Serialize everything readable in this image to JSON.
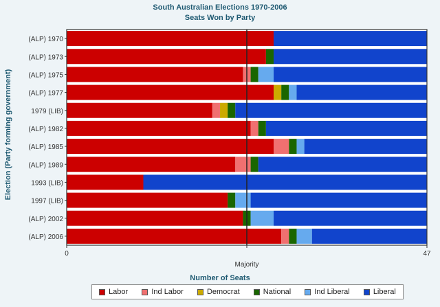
{
  "chart_data": {
    "type": "bar",
    "orientation": "horizontal",
    "stacked": true,
    "title": "South Australian Elections 1970-2006",
    "subtitle": "Seats Won by Party",
    "xlabel": "Number of Seats",
    "ylabel": "Election (Party forming government)",
    "xlim": [
      0,
      47
    ],
    "x_ticks": [
      "0",
      "47"
    ],
    "reference_line": {
      "value": 23.5,
      "label": "Majority"
    },
    "categories": [
      "(ALP) 1970",
      "(ALP) 1973",
      "(ALP) 1975",
      "(ALP) 1977",
      "1979 (LIB)",
      "(ALP) 1982",
      "(ALP) 1985",
      "(ALP) 1989",
      "1993 (LIB)",
      "1997 (LIB)",
      "(ALP) 2002",
      "(ALP) 2006"
    ],
    "series": [
      {
        "name": "Labor",
        "color": "#cc0000",
        "values": [
          27,
          26,
          23,
          27,
          19,
          24,
          27,
          22,
          10,
          21,
          23,
          28
        ]
      },
      {
        "name": "Ind Labor",
        "color": "#f07070",
        "values": [
          0,
          0,
          1,
          0,
          1,
          1,
          2,
          2,
          0,
          0,
          0,
          1
        ]
      },
      {
        "name": "Democrat",
        "color": "#ccaa00",
        "values": [
          0,
          0,
          0,
          1,
          1,
          0,
          0,
          0,
          0,
          0,
          0,
          0
        ]
      },
      {
        "name": "National",
        "color": "#1a6600",
        "values": [
          0,
          1,
          1,
          1,
          1,
          1,
          1,
          1,
          0,
          1,
          1,
          1
        ]
      },
      {
        "name": "Ind Liberal",
        "color": "#66aaee",
        "values": [
          0,
          0,
          2,
          1,
          0,
          0,
          1,
          0,
          0,
          2,
          3,
          2
        ]
      },
      {
        "name": "Liberal",
        "color": "#1144cc",
        "values": [
          20,
          20,
          20,
          17,
          25,
          21,
          16,
          22,
          37,
          23,
          20,
          15
        ]
      }
    ],
    "grid": false,
    "legend_position": "bottom"
  }
}
